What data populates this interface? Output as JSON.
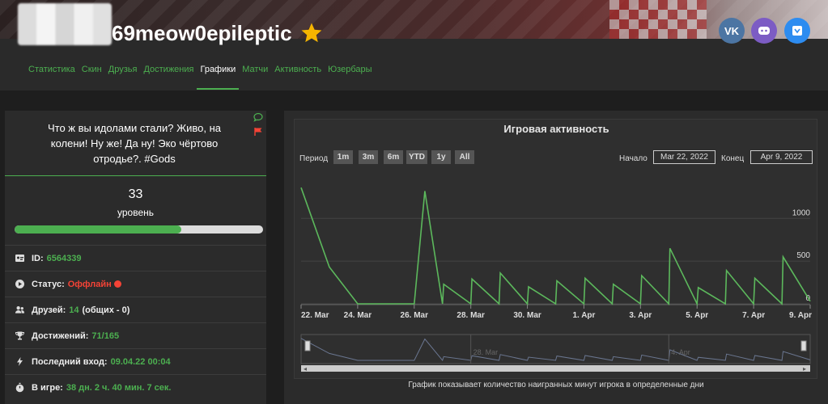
{
  "profile": {
    "username": "69meow0epileptic",
    "star_icon": "star-icon",
    "social": [
      {
        "name": "vk-icon",
        "label": "VK",
        "color": "#4c75a3"
      },
      {
        "name": "discord-icon",
        "label": "◉",
        "color": "#7c5cc4"
      },
      {
        "name": "vkplay-icon",
        "label": "▾",
        "color": "#2d8cf0"
      }
    ]
  },
  "nav": {
    "items": [
      "Статистика",
      "Скин",
      "Друзья",
      "Достижения",
      "Графики",
      "Матчи",
      "Активность",
      "Юзербары"
    ],
    "active": "Графики"
  },
  "left": {
    "status_text": "Что ж вы идолами стали? Живо, на колени! Ну же! Да ну! Эко чёртово отродье?. #Gods",
    "level": "33",
    "level_label": "уровень",
    "level_progress": 0.67,
    "rows": [
      {
        "icon": "id-card-icon",
        "label": "ID:",
        "value": "6564339"
      },
      {
        "icon": "play-circle-icon",
        "label": "Статус:",
        "value": "Оффлайн"
      },
      {
        "icon": "friends-icon",
        "label": "Друзей:",
        "value": "14",
        "extra": "(общих - 0)"
      },
      {
        "icon": "trophy-icon",
        "label": "Достижений:",
        "value": "71/165"
      },
      {
        "icon": "lightning-icon",
        "label": "Последний вход:",
        "value": "09.04.22 00:04"
      },
      {
        "icon": "stopwatch-icon",
        "label": "В игре:",
        "value": "38 дн. 2 ч. 40 мин. 7 сек."
      }
    ]
  },
  "chart": {
    "title": "Игровая активность",
    "period_label": "Период",
    "range_buttons": [
      "1m",
      "3m",
      "6m",
      "YTD",
      "1y",
      "All"
    ],
    "start_label": "Начало",
    "start_value": "Mar 22, 2022",
    "end_label": "Конец",
    "end_value": "Apr 9, 2022",
    "caption": "График показывает количество наигранных минут игрока в определенные дни",
    "navigator_labels": [
      "28. Mar",
      "4. Apr"
    ]
  },
  "chart_data": {
    "type": "line",
    "x": [
      "2022-03-22",
      "2022-03-23",
      "2022-03-24",
      "2022-03-25",
      "2022-03-26",
      "2022-03-27",
      "2022-03-28",
      "2022-03-29",
      "2022-03-30",
      "2022-03-31",
      "2022-04-01",
      "2022-04-02",
      "2022-04-03",
      "2022-04-04",
      "2022-04-05",
      "2022-04-06",
      "2022-04-07",
      "2022-04-08",
      "2022-04-09"
    ],
    "x_tick_labels": [
      "22. Mar",
      "24. Mar",
      "26. Mar",
      "28. Mar",
      "30. Mar",
      "1. Apr",
      "3. Apr",
      "5. Apr",
      "7. Apr",
      "9. Apr"
    ],
    "y_ticks": [
      "0",
      "500",
      "1000"
    ],
    "ylim": [
      0,
      1400
    ],
    "series": [
      {
        "color": "#5cb85c",
        "points": [
          [
            "2022-03-22 00:00",
            1360
          ],
          [
            "2022-03-23 00:00",
            430
          ],
          [
            "2022-03-24 00:00",
            0
          ],
          [
            "2022-03-26 00:00",
            0
          ],
          [
            "2022-03-26 09:00",
            1320
          ],
          [
            "2022-03-27 00:00",
            0
          ],
          [
            "2022-03-27 01:00",
            230
          ],
          [
            "2022-03-28 00:00",
            0
          ],
          [
            "2022-03-28 01:00",
            290
          ],
          [
            "2022-03-29 00:00",
            0
          ],
          [
            "2022-03-29 01:00",
            360
          ],
          [
            "2022-03-30 00:00",
            0
          ],
          [
            "2022-03-30 01:00",
            200
          ],
          [
            "2022-03-31 00:00",
            0
          ],
          [
            "2022-03-31 01:00",
            270
          ],
          [
            "2022-04-01 00:00",
            0
          ],
          [
            "2022-04-01 01:00",
            300
          ],
          [
            "2022-04-02 00:00",
            0
          ],
          [
            "2022-04-02 01:00",
            230
          ],
          [
            "2022-04-03 00:00",
            0
          ],
          [
            "2022-04-03 01:00",
            330
          ],
          [
            "2022-04-04 00:00",
            0
          ],
          [
            "2022-04-04 01:00",
            650
          ],
          [
            "2022-04-05 00:00",
            0
          ],
          [
            "2022-04-05 01:00",
            190
          ],
          [
            "2022-04-06 00:00",
            0
          ],
          [
            "2022-04-06 01:00",
            390
          ],
          [
            "2022-04-07 00:00",
            0
          ],
          [
            "2022-04-07 01:00",
            300
          ],
          [
            "2022-04-08 00:00",
            0
          ],
          [
            "2022-04-08 01:00",
            550
          ],
          [
            "2022-04-09 00:00",
            30
          ]
        ]
      }
    ],
    "grid": true
  },
  "colors": {
    "accent": "#4caf50",
    "offline": "#f44336",
    "background": "#1e1e1e",
    "panel": "#2b2b2b"
  }
}
